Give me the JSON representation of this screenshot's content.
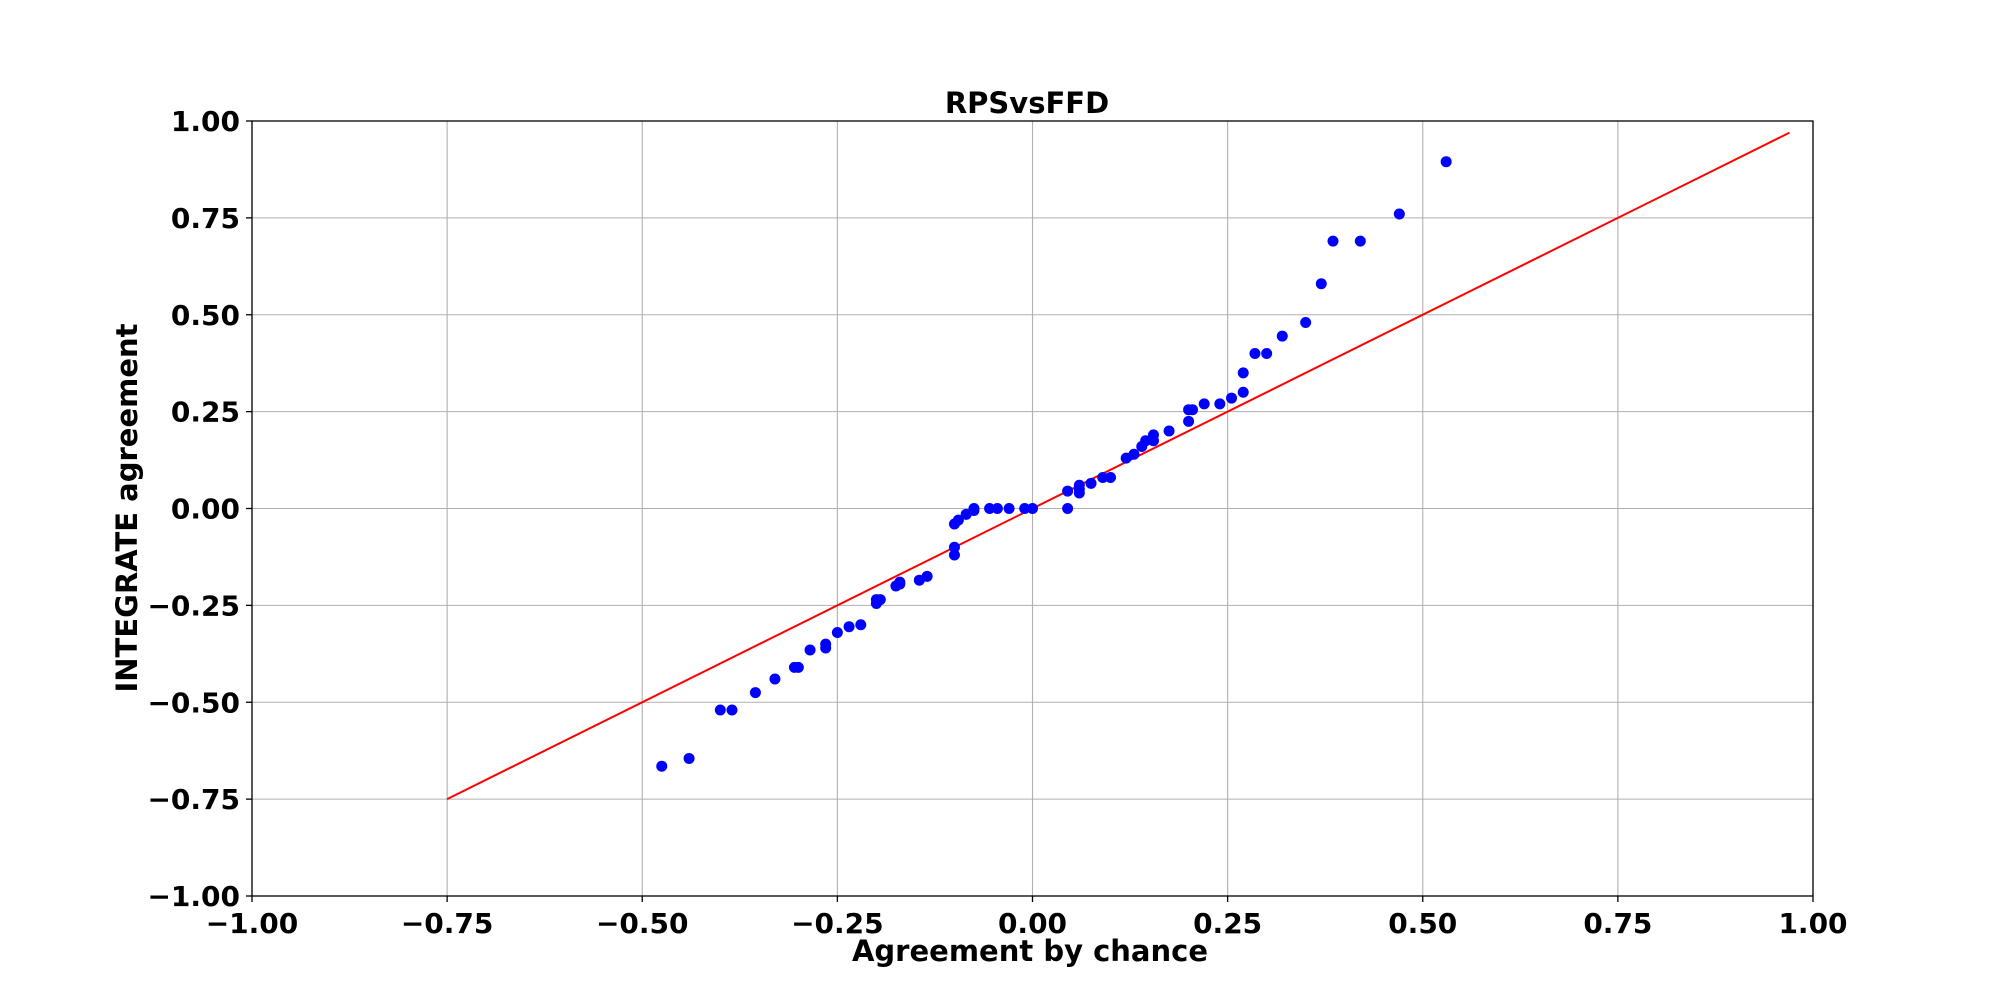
{
  "chart_data": {
    "type": "scatter",
    "title": "RPSvsFFD",
    "xlabel": "Agreement by chance",
    "ylabel": "INTEGRATE agreement",
    "xlim": [
      -1.0,
      1.0
    ],
    "ylim": [
      -1.0,
      1.0
    ],
    "grid": true,
    "xticks": [
      "−1.00",
      "−0.75",
      "−0.50",
      "−0.25",
      "0.00",
      "0.25",
      "0.50",
      "0.75",
      "1.00"
    ],
    "yticks": [
      "−1.00",
      "−0.75",
      "−0.50",
      "−0.25",
      "0.00",
      "0.25",
      "0.50",
      "0.75",
      "1.00"
    ],
    "point_color": "#0000ff",
    "line_color": "#ff0000",
    "reference_line": {
      "x": [
        -0.75,
        0.97
      ],
      "y": [
        -0.75,
        0.97
      ]
    },
    "points": [
      [
        -0.475,
        -0.665
      ],
      [
        -0.44,
        -0.645
      ],
      [
        -0.4,
        -0.52
      ],
      [
        -0.385,
        -0.52
      ],
      [
        -0.355,
        -0.475
      ],
      [
        -0.33,
        -0.44
      ],
      [
        -0.305,
        -0.41
      ],
      [
        -0.3,
        -0.41
      ],
      [
        -0.285,
        -0.365
      ],
      [
        -0.265,
        -0.36
      ],
      [
        -0.265,
        -0.35
      ],
      [
        -0.25,
        -0.32
      ],
      [
        -0.235,
        -0.305
      ],
      [
        -0.22,
        -0.3
      ],
      [
        -0.2,
        -0.245
      ],
      [
        -0.2,
        -0.235
      ],
      [
        -0.195,
        -0.235
      ],
      [
        -0.175,
        -0.2
      ],
      [
        -0.17,
        -0.195
      ],
      [
        -0.17,
        -0.19
      ],
      [
        -0.145,
        -0.185
      ],
      [
        -0.135,
        -0.175
      ],
      [
        -0.1,
        -0.12
      ],
      [
        -0.1,
        -0.1
      ],
      [
        -0.1,
        -0.04
      ],
      [
        -0.095,
        -0.03
      ],
      [
        -0.085,
        -0.015
      ],
      [
        -0.075,
        -0.005
      ],
      [
        -0.075,
        0.0
      ],
      [
        -0.055,
        0.0
      ],
      [
        -0.045,
        0.0
      ],
      [
        -0.03,
        0.0
      ],
      [
        -0.01,
        0.0
      ],
      [
        0.0,
        0.0
      ],
      [
        0.045,
        0.0
      ],
      [
        0.045,
        0.045
      ],
      [
        0.06,
        0.04
      ],
      [
        0.06,
        0.05
      ],
      [
        0.06,
        0.06
      ],
      [
        0.075,
        0.065
      ],
      [
        0.09,
        0.08
      ],
      [
        0.1,
        0.08
      ],
      [
        0.12,
        0.13
      ],
      [
        0.13,
        0.14
      ],
      [
        0.14,
        0.16
      ],
      [
        0.145,
        0.175
      ],
      [
        0.155,
        0.175
      ],
      [
        0.155,
        0.19
      ],
      [
        0.175,
        0.2
      ],
      [
        0.2,
        0.225
      ],
      [
        0.2,
        0.255
      ],
      [
        0.205,
        0.255
      ],
      [
        0.22,
        0.27
      ],
      [
        0.24,
        0.27
      ],
      [
        0.255,
        0.285
      ],
      [
        0.27,
        0.3
      ],
      [
        0.27,
        0.35
      ],
      [
        0.285,
        0.4
      ],
      [
        0.3,
        0.4
      ],
      [
        0.32,
        0.445
      ],
      [
        0.35,
        0.48
      ],
      [
        0.37,
        0.58
      ],
      [
        0.385,
        0.69
      ],
      [
        0.42,
        0.69
      ],
      [
        0.47,
        0.76
      ],
      [
        0.53,
        0.895
      ]
    ]
  }
}
